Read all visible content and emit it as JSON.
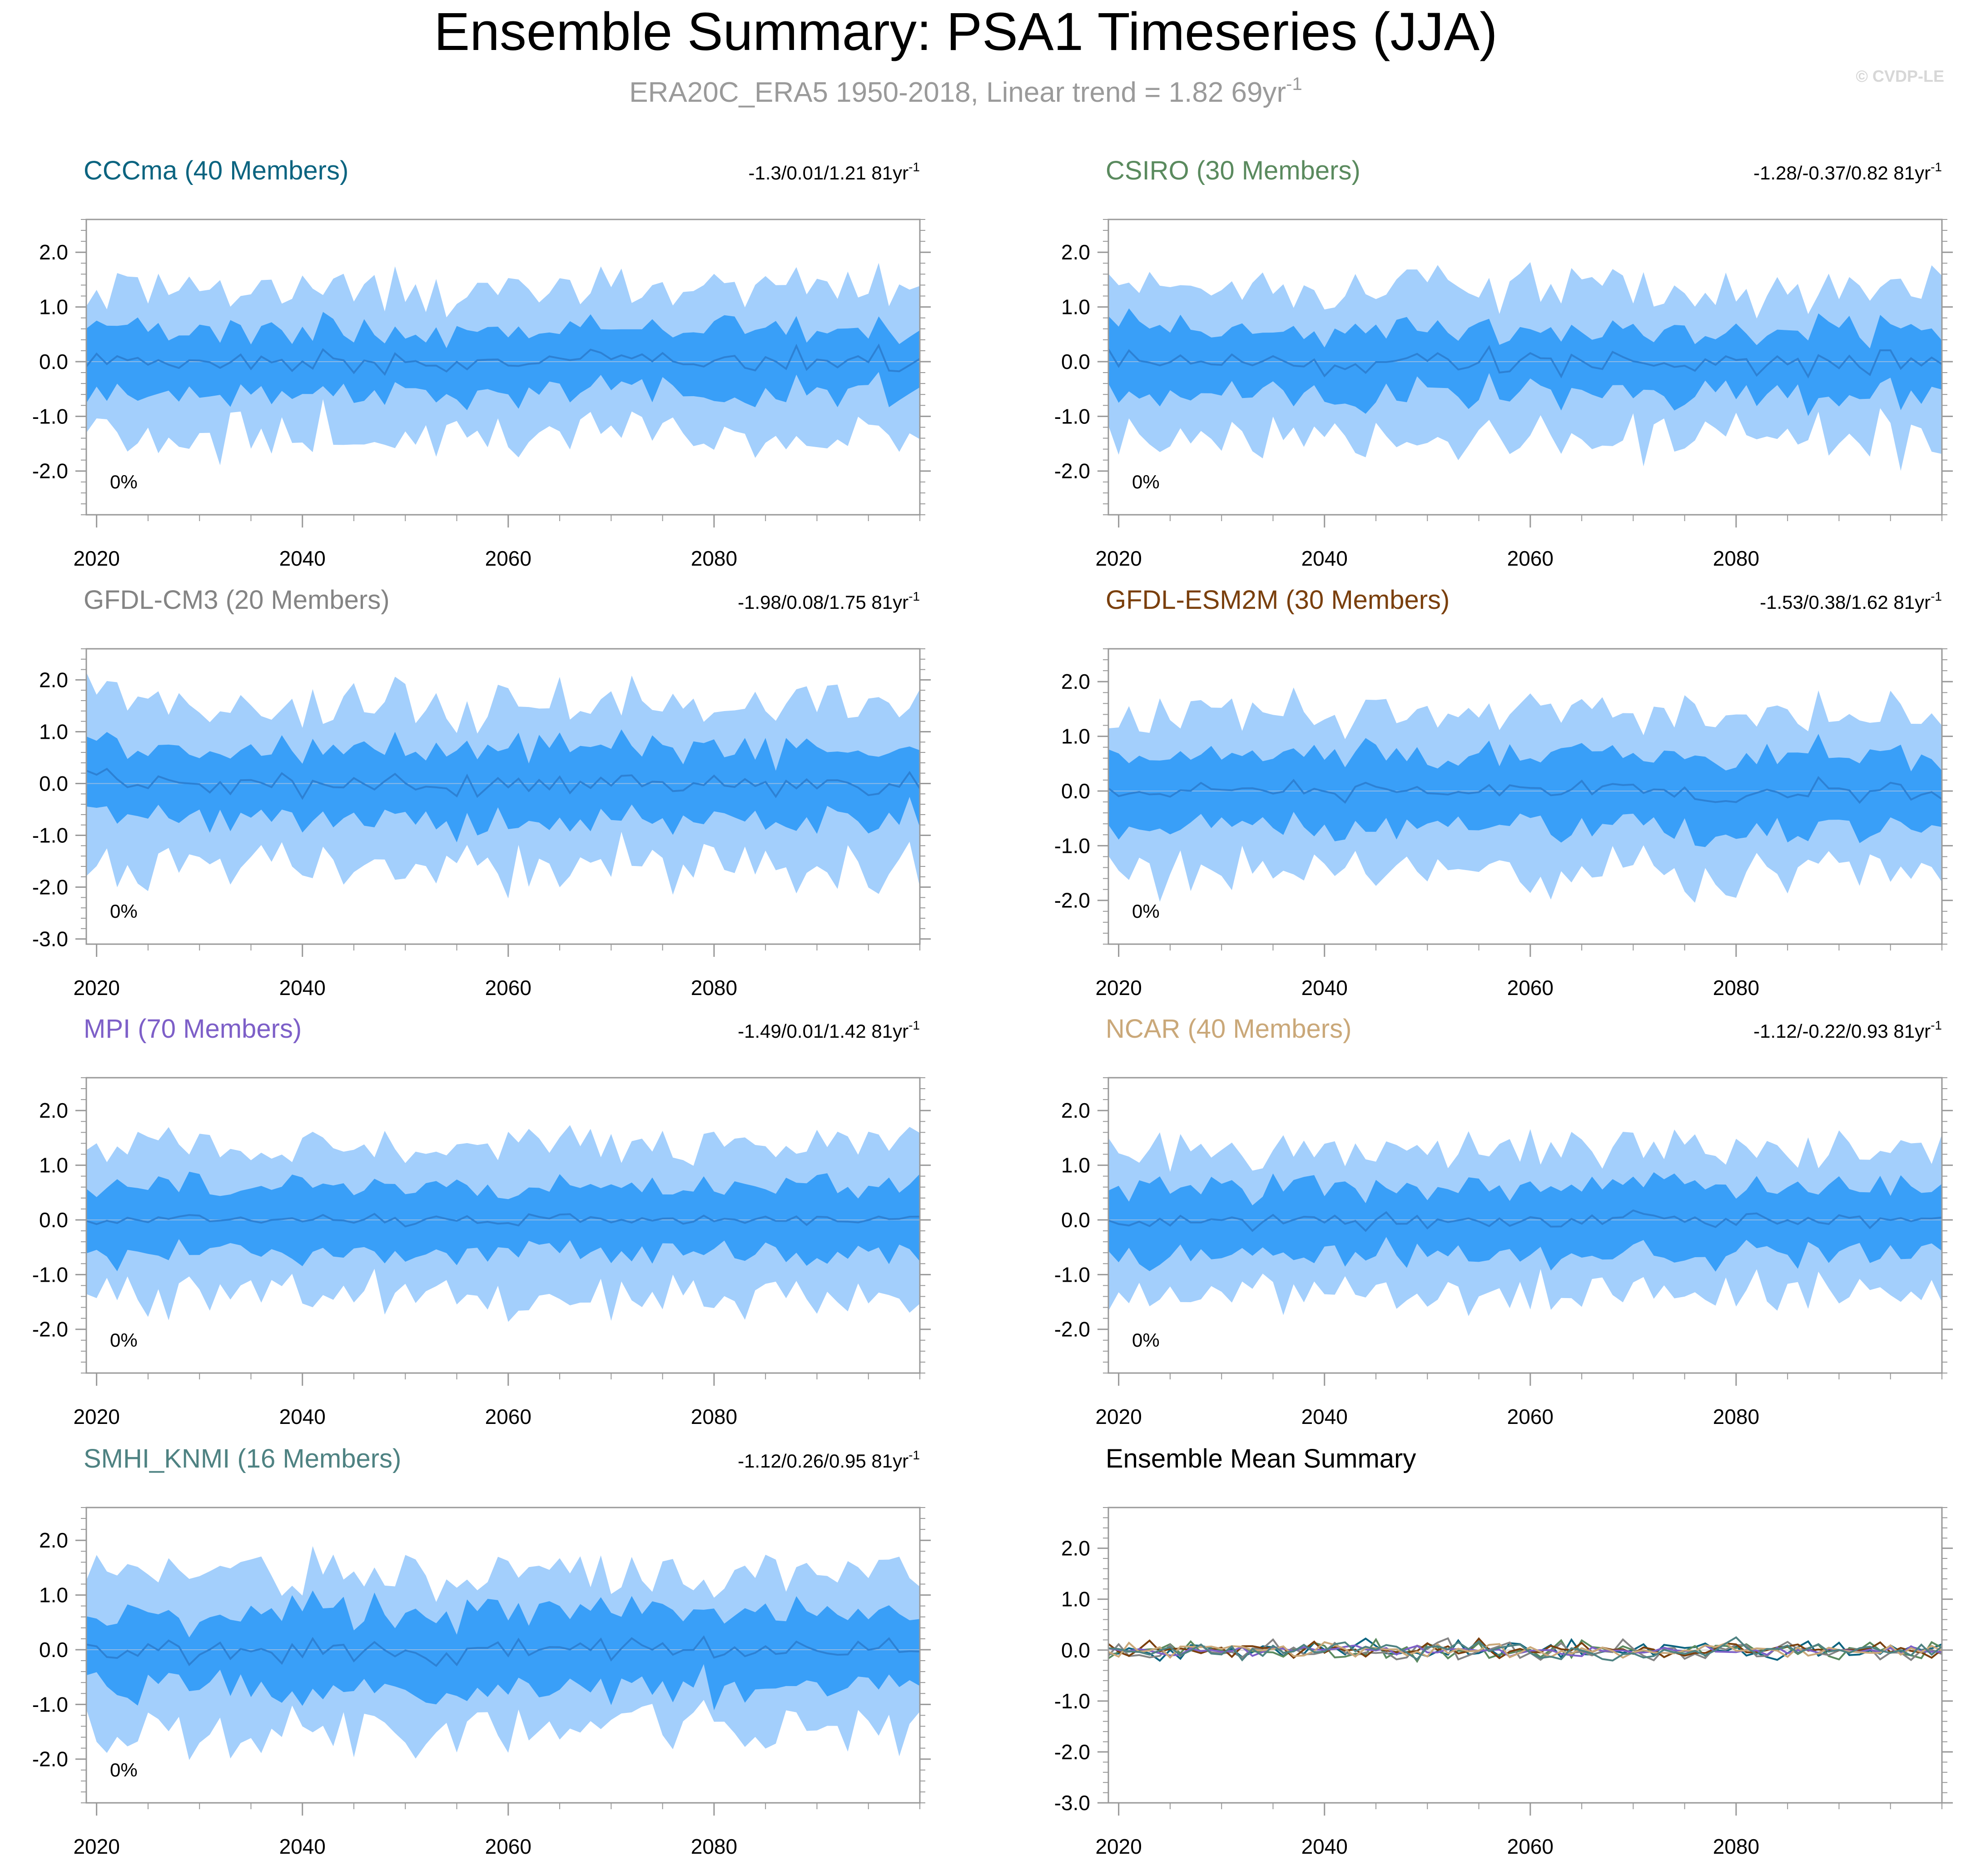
{
  "figure": {
    "title": "Ensemble Summary: PSA1 Timeseries (JJA)",
    "subtitle_main": "ERA20C_ERA5 1950-2018, Linear trend = 1.82 69yr",
    "subtitle_exp": "-1",
    "watermark": "© CVDP-LE"
  },
  "colors": {
    "band_outer": "#a3cffc",
    "band_inner": "#399ff8",
    "mean_line": "#2d81d4",
    "zero_line": "#8cb9e6",
    "axis": "#999999",
    "text": "#000000"
  },
  "chart_data": [
    {
      "type": "area",
      "title": "CCCma (40 Members)",
      "title_color": "#0b6480",
      "trend_text": "-1.3/0.01/1.21 81yr",
      "trend_exp": "-1",
      "pct_label": "0%",
      "x_range": [
        2019,
        2100
      ],
      "ylim": [
        -2.8,
        2.6
      ],
      "y_ticks": [
        2.0,
        1.0,
        0.0,
        -1.0,
        -2.0
      ],
      "y_tick_labels": [
        "2.0",
        "1.0",
        "0.0",
        "-1.0",
        "-2.0"
      ],
      "x_ticks": [
        2020,
        2040,
        2060,
        2080
      ],
      "x_tick_labels": [
        "2020",
        "2040",
        "2060",
        "2080"
      ],
      "seed": 11,
      "outer_half": 1.3,
      "inner_half": 0.6,
      "mean_amp": 0.22
    },
    {
      "type": "area",
      "title": "CSIRO (30 Members)",
      "title_color": "#5a8a5e",
      "trend_text": "-1.28/-0.37/0.82 81yr",
      "trend_exp": "-1",
      "pct_label": "0%",
      "x_range": [
        2019,
        2100
      ],
      "ylim": [
        -2.8,
        2.6
      ],
      "y_ticks": [
        2.0,
        1.0,
        0.0,
        -1.0,
        -2.0
      ],
      "y_tick_labels": [
        "2.0",
        "1.0",
        "0.0",
        "-1.0",
        "-2.0"
      ],
      "x_ticks": [
        2020,
        2040,
        2060,
        2080
      ],
      "x_tick_labels": [
        "2020",
        "2040",
        "2060",
        "2080"
      ],
      "seed": 23,
      "outer_half": 1.35,
      "inner_half": 0.6,
      "mean_amp": 0.25
    },
    {
      "type": "area",
      "title": "GFDL-CM3 (20 Members)",
      "title_color": "#848484",
      "trend_text": "-1.98/0.08/1.75 81yr",
      "trend_exp": "-1",
      "pct_label": "0%",
      "x_range": [
        2019,
        2100
      ],
      "ylim": [
        -3.1,
        2.6
      ],
      "y_ticks": [
        2.0,
        1.0,
        0.0,
        -1.0,
        -2.0,
        -3.0
      ],
      "y_tick_labels": [
        "2.0",
        "1.0",
        "0.0",
        "-1.0",
        "-2.0",
        "-3.0"
      ],
      "x_ticks": [
        2020,
        2040,
        2060,
        2080
      ],
      "x_tick_labels": [
        "2020",
        "2040",
        "2060",
        "2080"
      ],
      "seed": 37,
      "outer_half": 1.55,
      "inner_half": 0.7,
      "mean_amp": 0.25
    },
    {
      "type": "area",
      "title": "GFDL-ESM2M (30 Members)",
      "title_color": "#7a3f0c",
      "trend_text": "-1.53/0.38/1.62 81yr",
      "trend_exp": "-1",
      "pct_label": "0%",
      "x_range": [
        2019,
        2100
      ],
      "ylim": [
        -2.8,
        2.6
      ],
      "y_ticks": [
        2.0,
        1.0,
        0.0,
        -1.0,
        -2.0
      ],
      "y_tick_labels": [
        "2.0",
        "1.0",
        "0.0",
        "-1.0",
        "-2.0"
      ],
      "x_ticks": [
        2020,
        2040,
        2060,
        2080
      ],
      "x_tick_labels": [
        "2020",
        "2040",
        "2060",
        "2080"
      ],
      "seed": 41,
      "outer_half": 1.4,
      "inner_half": 0.65,
      "mean_amp": 0.18
    },
    {
      "type": "area",
      "title": "MPI (70 Members)",
      "title_color": "#7d5fc8",
      "trend_text": "-1.49/0.01/1.42 81yr",
      "trend_exp": "-1",
      "pct_label": "0%",
      "x_range": [
        2019,
        2100
      ],
      "ylim": [
        -2.8,
        2.6
      ],
      "y_ticks": [
        2.0,
        1.0,
        0.0,
        -1.0,
        -2.0
      ],
      "y_tick_labels": [
        "2.0",
        "1.0",
        "0.0",
        "-1.0",
        "-2.0"
      ],
      "x_ticks": [
        2020,
        2040,
        2060,
        2080
      ],
      "x_tick_labels": [
        "2020",
        "2040",
        "2060",
        "2080"
      ],
      "seed": 53,
      "outer_half": 1.35,
      "inner_half": 0.62,
      "mean_amp": 0.12
    },
    {
      "type": "area",
      "title": "NCAR (40 Members)",
      "title_color": "#caa879",
      "trend_text": "-1.12/-0.22/0.93 81yr",
      "trend_exp": "-1",
      "pct_label": "0%",
      "x_range": [
        2019,
        2100
      ],
      "ylim": [
        -2.8,
        2.6
      ],
      "y_ticks": [
        2.0,
        1.0,
        0.0,
        -1.0,
        -2.0
      ],
      "y_tick_labels": [
        "2.0",
        "1.0",
        "0.0",
        "-1.0",
        "-2.0"
      ],
      "x_ticks": [
        2020,
        2040,
        2060,
        2080
      ],
      "x_tick_labels": [
        "2020",
        "2040",
        "2060",
        "2080"
      ],
      "seed": 67,
      "outer_half": 1.3,
      "inner_half": 0.62,
      "mean_amp": 0.15
    },
    {
      "type": "area",
      "title": "SMHI_KNMI (16 Members)",
      "title_color": "#4e8282",
      "trend_text": "-1.12/0.26/0.95 81yr",
      "trend_exp": "-1",
      "pct_label": "0%",
      "x_range": [
        2019,
        2100
      ],
      "ylim": [
        -2.8,
        2.6
      ],
      "y_ticks": [
        2.0,
        1.0,
        0.0,
        -1.0,
        -2.0
      ],
      "y_tick_labels": [
        "2.0",
        "1.0",
        "0.0",
        "-1.0",
        "-2.0"
      ],
      "x_ticks": [
        2020,
        2040,
        2060,
        2080
      ],
      "x_tick_labels": [
        "2020",
        "2040",
        "2060",
        "2080"
      ],
      "seed": 79,
      "outer_half": 1.4,
      "inner_half": 0.7,
      "mean_amp": 0.25
    },
    {
      "type": "line",
      "title": "Ensemble Mean Summary",
      "title_color": "#000000",
      "x_range": [
        2019,
        2100
      ],
      "ylim": [
        -3.0,
        2.8
      ],
      "y_ticks": [
        2.0,
        1.0,
        0.0,
        -1.0,
        -2.0,
        -3.0
      ],
      "y_tick_labels": [
        "2.0",
        "1.0",
        "0.0",
        "-1.0",
        "-2.0",
        "-3.0"
      ],
      "x_ticks": [
        2020,
        2040,
        2060,
        2080
      ],
      "x_tick_labels": [
        "2020",
        "2040",
        "2060",
        "2080"
      ],
      "series": [
        {
          "name": "CCCma",
          "color": "#0b6480",
          "seed": 11,
          "amp": 0.18
        },
        {
          "name": "CSIRO",
          "color": "#5a8a5e",
          "seed": 23,
          "amp": 0.2
        },
        {
          "name": "GFDL-CM3",
          "color": "#848484",
          "seed": 37,
          "amp": 0.2
        },
        {
          "name": "GFDL-ESM2M",
          "color": "#7a3f0c",
          "seed": 41,
          "amp": 0.16
        },
        {
          "name": "MPI",
          "color": "#7d5fc8",
          "seed": 53,
          "amp": 0.1
        },
        {
          "name": "NCAR",
          "color": "#caa879",
          "seed": 67,
          "amp": 0.13
        },
        {
          "name": "SMHI_KNMI",
          "color": "#4e8282",
          "seed": 79,
          "amp": 0.18
        }
      ]
    }
  ]
}
